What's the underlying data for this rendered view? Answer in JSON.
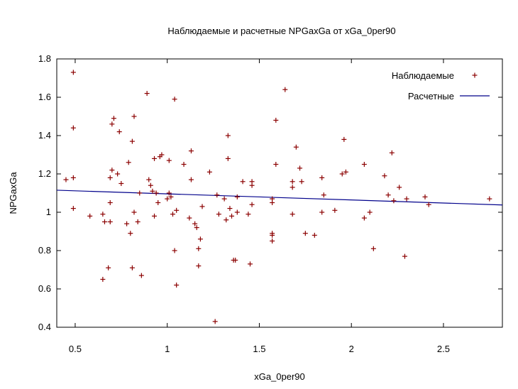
{
  "chart_data": {
    "type": "scatter",
    "title": "Наблюдаемые и расчетные NPGaxGa от xGa_0per90",
    "xlabel": "xGa_0per90",
    "ylabel": "NPGaxGa",
    "xlim": [
      0.4,
      2.82
    ],
    "ylim": [
      0.4,
      1.8
    ],
    "xticks": [
      0.5,
      1,
      1.5,
      2,
      2.5
    ],
    "yticks": [
      0.4,
      0.6,
      0.8,
      1,
      1.2,
      1.4,
      1.6,
      1.8
    ],
    "xtick_labels": [
      "0.5",
      "1",
      "1.5",
      "2",
      "2.5"
    ],
    "ytick_labels": [
      "0.4",
      "0.6",
      "0.8",
      "1",
      "1.2",
      "1.4",
      "1.6",
      "1.8"
    ],
    "grid": false,
    "legend_position": "top-right",
    "series": [
      {
        "name": "Наблюдаемые",
        "kind": "points",
        "marker": "plus",
        "color": "#8b0000",
        "points": [
          [
            0.45,
            1.17
          ],
          [
            0.49,
            1.73
          ],
          [
            0.49,
            1.44
          ],
          [
            0.49,
            1.18
          ],
          [
            0.49,
            1.02
          ],
          [
            0.58,
            0.98
          ],
          [
            0.65,
            0.99
          ],
          [
            0.66,
            0.95
          ],
          [
            0.65,
            0.65
          ],
          [
            0.68,
            0.71
          ],
          [
            0.69,
            0.95
          ],
          [
            0.69,
            1.05
          ],
          [
            0.69,
            1.18
          ],
          [
            0.7,
            1.22
          ],
          [
            0.7,
            1.46
          ],
          [
            0.71,
            1.49
          ],
          [
            0.73,
            1.2
          ],
          [
            0.74,
            1.42
          ],
          [
            0.75,
            1.15
          ],
          [
            0.78,
            0.94
          ],
          [
            0.79,
            1.26
          ],
          [
            0.8,
            0.89
          ],
          [
            0.81,
            1.37
          ],
          [
            0.81,
            0.71
          ],
          [
            0.82,
            1.5
          ],
          [
            0.82,
            1.0
          ],
          [
            0.84,
            0.95
          ],
          [
            0.85,
            1.1
          ],
          [
            0.86,
            0.67
          ],
          [
            0.89,
            1.62
          ],
          [
            0.9,
            1.17
          ],
          [
            0.91,
            1.14
          ],
          [
            0.92,
            1.11
          ],
          [
            0.93,
            0.98
          ],
          [
            0.93,
            1.28
          ],
          [
            0.94,
            1.1
          ],
          [
            0.95,
            1.05
          ],
          [
            0.96,
            1.29
          ],
          [
            0.97,
            1.3
          ],
          [
            1.0,
            1.07
          ],
          [
            1.01,
            1.1
          ],
          [
            1.01,
            1.27
          ],
          [
            1.02,
            1.08
          ],
          [
            1.03,
            0.99
          ],
          [
            1.04,
            0.8
          ],
          [
            1.04,
            1.59
          ],
          [
            1.05,
            0.62
          ],
          [
            1.05,
            1.01
          ],
          [
            1.09,
            1.25
          ],
          [
            1.12,
            0.97
          ],
          [
            1.13,
            1.17
          ],
          [
            1.13,
            1.32
          ],
          [
            1.15,
            0.94
          ],
          [
            1.16,
            0.92
          ],
          [
            1.17,
            0.81
          ],
          [
            1.17,
            0.72
          ],
          [
            1.18,
            0.86
          ],
          [
            1.19,
            1.03
          ],
          [
            1.23,
            1.21
          ],
          [
            1.26,
            0.43
          ],
          [
            1.27,
            1.09
          ],
          [
            1.28,
            0.99
          ],
          [
            1.31,
            1.07
          ],
          [
            1.32,
            0.96
          ],
          [
            1.33,
            1.28
          ],
          [
            1.33,
            1.4
          ],
          [
            1.34,
            1.02
          ],
          [
            1.35,
            0.98
          ],
          [
            1.36,
            0.75
          ],
          [
            1.37,
            0.75
          ],
          [
            1.38,
            1.08
          ],
          [
            1.38,
            1.0
          ],
          [
            1.41,
            1.16
          ],
          [
            1.44,
            0.99
          ],
          [
            1.45,
            0.73
          ],
          [
            1.46,
            1.04
          ],
          [
            1.46,
            1.14
          ],
          [
            1.46,
            1.16
          ],
          [
            1.57,
            1.07
          ],
          [
            1.57,
            1.05
          ],
          [
            1.57,
            0.89
          ],
          [
            1.57,
            0.85
          ],
          [
            1.57,
            0.88
          ],
          [
            1.59,
            1.48
          ],
          [
            1.59,
            1.25
          ],
          [
            1.64,
            1.64
          ],
          [
            1.68,
            0.99
          ],
          [
            1.68,
            1.16
          ],
          [
            1.68,
            1.13
          ],
          [
            1.7,
            1.34
          ],
          [
            1.72,
            1.23
          ],
          [
            1.73,
            1.16
          ],
          [
            1.75,
            0.89
          ],
          [
            1.8,
            0.88
          ],
          [
            1.84,
            1.18
          ],
          [
            1.84,
            1.0
          ],
          [
            1.85,
            1.09
          ],
          [
            1.91,
            1.01
          ],
          [
            1.95,
            1.2
          ],
          [
            1.96,
            1.38
          ],
          [
            1.97,
            1.21
          ],
          [
            2.07,
            0.97
          ],
          [
            2.07,
            1.25
          ],
          [
            2.1,
            1.0
          ],
          [
            2.12,
            0.81
          ],
          [
            2.18,
            1.19
          ],
          [
            2.2,
            1.09
          ],
          [
            2.22,
            1.31
          ],
          [
            2.23,
            1.06
          ],
          [
            2.26,
            1.13
          ],
          [
            2.29,
            0.77
          ],
          [
            2.3,
            1.07
          ],
          [
            2.4,
            1.08
          ],
          [
            2.42,
            1.04
          ],
          [
            2.75,
            1.07
          ]
        ]
      },
      {
        "name": "Расчетные",
        "kind": "line",
        "color": "#00008b",
        "points": [
          [
            0.4,
            1.115
          ],
          [
            2.82,
            1.038
          ]
        ]
      }
    ]
  }
}
